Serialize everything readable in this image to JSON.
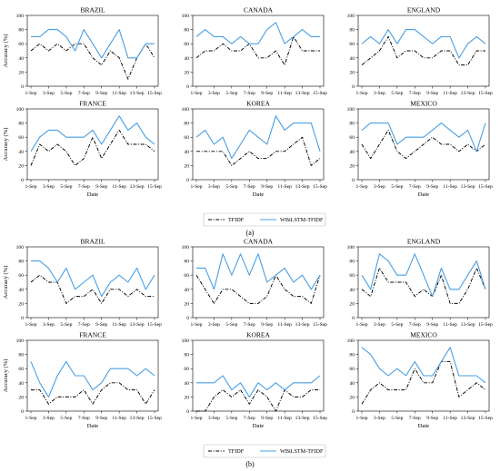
{
  "figure": {
    "ylabel": "Accuracy (%)",
    "xlabel": "Date",
    "panel_a_label": "(a)",
    "panel_b_label": "(b)",
    "legend_tfidf": "TFIDF",
    "legend_wbilstm": "WBiLSTM-TFIDF",
    "series_colors": {
      "TFIDF": "#000000",
      "WBiLSTM-TFIDF": "#4a9fe0"
    }
  },
  "chart_data": [
    {
      "type": "line",
      "panel": "a",
      "title": "BRAZIL",
      "x": [
        "1-Sep",
        "2-Sep",
        "3-Sep",
        "4-Sep",
        "5-Sep",
        "6-Sep",
        "7-Sep",
        "8-Sep",
        "9-Sep",
        "10-Sep",
        "11-Sep",
        "12-Sep",
        "13-Sep",
        "14-Sep",
        "15-Sep"
      ],
      "xticks": [
        "1-Sep",
        "3-Sep",
        "5-Sep",
        "7-Sep",
        "9-Sep",
        "11-Sep",
        "13-Sep",
        "15-Sep"
      ],
      "ylim": [
        0,
        100
      ],
      "yticks": [
        0,
        20,
        40,
        60,
        80,
        100
      ],
      "series": [
        {
          "name": "TFIDF",
          "values": [
            50,
            60,
            50,
            60,
            50,
            60,
            60,
            40,
            30,
            50,
            40,
            10,
            40,
            60,
            40
          ]
        },
        {
          "name": "WBiLSTM-TFIDF",
          "values": [
            70,
            70,
            80,
            80,
            70,
            50,
            80,
            60,
            40,
            60,
            80,
            40,
            40,
            60,
            60
          ]
        }
      ]
    },
    {
      "type": "line",
      "panel": "a",
      "title": "CANADA",
      "x": [
        "1-Sep",
        "2-Sep",
        "3-Sep",
        "4-Sep",
        "5-Sep",
        "6-Sep",
        "7-Sep",
        "8-Sep",
        "9-Sep",
        "10-Sep",
        "11-Sep",
        "12-Sep",
        "13-Sep",
        "14-Sep",
        "15-Sep"
      ],
      "xticks": [
        "1-Sep",
        "3-Sep",
        "5-Sep",
        "7-Sep",
        "9-Sep",
        "11-Sep",
        "13-Sep",
        "15-Sep"
      ],
      "ylim": [
        0,
        100
      ],
      "yticks": [
        0,
        20,
        40,
        60,
        80,
        100
      ],
      "series": [
        {
          "name": "TFIDF",
          "values": [
            40,
            50,
            50,
            60,
            50,
            50,
            60,
            40,
            40,
            50,
            30,
            70,
            50,
            50,
            50
          ]
        },
        {
          "name": "WBiLSTM-TFIDF",
          "values": [
            70,
            80,
            70,
            70,
            60,
            70,
            60,
            60,
            80,
            90,
            60,
            70,
            80,
            70,
            70
          ]
        }
      ]
    },
    {
      "type": "line",
      "panel": "a",
      "title": "ENGLAND",
      "x": [
        "1-Sep",
        "2-Sep",
        "3-Sep",
        "4-Sep",
        "5-Sep",
        "6-Sep",
        "7-Sep",
        "8-Sep",
        "9-Sep",
        "10-Sep",
        "11-Sep",
        "12-Sep",
        "13-Sep",
        "14-Sep",
        "15-Sep"
      ],
      "xticks": [
        "1-Sep",
        "3-Sep",
        "5-Sep",
        "7-Sep",
        "9-Sep",
        "11-Sep",
        "13-Sep",
        "15-Sep"
      ],
      "ylim": [
        0,
        100
      ],
      "yticks": [
        0,
        20,
        40,
        60,
        80,
        100
      ],
      "series": [
        {
          "name": "TFIDF",
          "values": [
            30,
            40,
            50,
            70,
            40,
            50,
            50,
            40,
            40,
            50,
            50,
            30,
            30,
            50,
            50
          ]
        },
        {
          "name": "WBiLSTM-TFIDF",
          "values": [
            60,
            70,
            60,
            80,
            60,
            80,
            80,
            70,
            60,
            70,
            70,
            40,
            60,
            70,
            60
          ]
        }
      ]
    },
    {
      "type": "line",
      "panel": "a",
      "title": "FRANCE",
      "x": [
        "1-Sep",
        "2-Sep",
        "3-Sep",
        "4-Sep",
        "5-Sep",
        "6-Sep",
        "7-Sep",
        "8-Sep",
        "9-Sep",
        "10-Sep",
        "11-Sep",
        "12-Sep",
        "13-Sep",
        "14-Sep",
        "15-Sep"
      ],
      "xticks": [
        "1-Sep",
        "3-Sep",
        "5-Sep",
        "7-Sep",
        "9-Sep",
        "11-Sep",
        "13-Sep",
        "15-Sep"
      ],
      "ylim": [
        0,
        100
      ],
      "yticks": [
        0,
        20,
        40,
        60,
        80,
        100
      ],
      "series": [
        {
          "name": "TFIDF",
          "values": [
            20,
            50,
            40,
            50,
            40,
            20,
            30,
            60,
            30,
            50,
            70,
            50,
            50,
            50,
            40
          ]
        },
        {
          "name": "WBiLSTM-TFIDF",
          "values": [
            40,
            60,
            70,
            70,
            60,
            60,
            60,
            70,
            50,
            70,
            90,
            70,
            80,
            60,
            50
          ]
        }
      ]
    },
    {
      "type": "line",
      "panel": "a",
      "title": "KOREA",
      "x": [
        "1-Sep",
        "2-Sep",
        "3-Sep",
        "4-Sep",
        "5-Sep",
        "6-Sep",
        "7-Sep",
        "8-Sep",
        "9-Sep",
        "10-Sep",
        "11-Sep",
        "12-Sep",
        "13-Sep",
        "14-Sep",
        "15-Sep"
      ],
      "xticks": [
        "1-Sep",
        "3-Sep",
        "5-Sep",
        "7-Sep",
        "9-Sep",
        "11-Sep",
        "13-Sep",
        "15-Sep"
      ],
      "ylim": [
        0,
        100
      ],
      "yticks": [
        0,
        20,
        40,
        60,
        80,
        100
      ],
      "series": [
        {
          "name": "TFIDF",
          "values": [
            40,
            40,
            40,
            40,
            20,
            30,
            40,
            30,
            30,
            40,
            40,
            50,
            60,
            20,
            30
          ]
        },
        {
          "name": "WBiLSTM-TFIDF",
          "values": [
            60,
            70,
            50,
            60,
            30,
            50,
            70,
            60,
            50,
            90,
            70,
            80,
            80,
            80,
            40
          ]
        }
      ]
    },
    {
      "type": "line",
      "panel": "a",
      "title": "MEXICO",
      "x": [
        "1-Sep",
        "2-Sep",
        "3-Sep",
        "4-Sep",
        "5-Sep",
        "6-Sep",
        "7-Sep",
        "8-Sep",
        "9-Sep",
        "10-Sep",
        "11-Sep",
        "12-Sep",
        "13-Sep",
        "14-Sep",
        "15-Sep"
      ],
      "xticks": [
        "1-Sep",
        "3-Sep",
        "5-Sep",
        "7-Sep",
        "9-Sep",
        "11-Sep",
        "13-Sep",
        "15-Sep"
      ],
      "ylim": [
        0,
        100
      ],
      "yticks": [
        0,
        20,
        40,
        60,
        80,
        100
      ],
      "series": [
        {
          "name": "TFIDF",
          "values": [
            50,
            30,
            50,
            70,
            40,
            30,
            40,
            50,
            60,
            50,
            50,
            40,
            50,
            40,
            50
          ]
        },
        {
          "name": "WBiLSTM-TFIDF",
          "values": [
            70,
            80,
            80,
            80,
            50,
            60,
            60,
            60,
            70,
            80,
            70,
            60,
            70,
            40,
            80
          ]
        }
      ]
    },
    {
      "type": "line",
      "panel": "b",
      "title": "BRAZIL",
      "x": [
        "1-Sep",
        "2-Sep",
        "3-Sep",
        "4-Sep",
        "5-Sep",
        "6-Sep",
        "7-Sep",
        "8-Sep",
        "9-Sep",
        "10-Sep",
        "11-Sep",
        "12-Sep",
        "13-Sep",
        "14-Sep",
        "15-Sep"
      ],
      "xticks": [
        "1-Sep",
        "3-Sep",
        "5-Sep",
        "7-Sep",
        "9-Sep",
        "11-Sep",
        "13-Sep",
        "15-Sep"
      ],
      "ylim": [
        0,
        100
      ],
      "yticks": [
        0,
        20,
        40,
        60,
        80,
        100
      ],
      "series": [
        {
          "name": "TFIDF",
          "values": [
            50,
            60,
            50,
            50,
            20,
            30,
            30,
            40,
            20,
            40,
            40,
            30,
            40,
            30,
            30
          ]
        },
        {
          "name": "WBiLSTM-TFIDF",
          "values": [
            80,
            80,
            70,
            50,
            70,
            40,
            50,
            60,
            30,
            50,
            60,
            50,
            70,
            40,
            60
          ]
        }
      ]
    },
    {
      "type": "line",
      "panel": "b",
      "title": "CANADA",
      "x": [
        "1-Sep",
        "2-Sep",
        "3-Sep",
        "4-Sep",
        "5-Sep",
        "6-Sep",
        "7-Sep",
        "8-Sep",
        "9-Sep",
        "10-Sep",
        "11-Sep",
        "12-Sep",
        "13-Sep",
        "14-Sep",
        "15-Sep"
      ],
      "xticks": [
        "1-Sep",
        "3-Sep",
        "5-Sep",
        "7-Sep",
        "9-Sep",
        "11-Sep",
        "13-Sep",
        "15-Sep"
      ],
      "ylim": [
        0,
        100
      ],
      "yticks": [
        0,
        20,
        40,
        60,
        80,
        100
      ],
      "series": [
        {
          "name": "TFIDF",
          "values": [
            60,
            40,
            20,
            40,
            40,
            30,
            20,
            20,
            30,
            60,
            40,
            30,
            30,
            20,
            60
          ]
        },
        {
          "name": "WBiLSTM-TFIDF",
          "values": [
            70,
            70,
            40,
            90,
            60,
            90,
            60,
            90,
            50,
            60,
            70,
            50,
            60,
            40,
            60
          ]
        }
      ]
    },
    {
      "type": "line",
      "panel": "b",
      "title": "ENGLAND",
      "x": [
        "1-Sep",
        "2-Sep",
        "3-Sep",
        "4-Sep",
        "5-Sep",
        "6-Sep",
        "7-Sep",
        "8-Sep",
        "9-Sep",
        "10-Sep",
        "11-Sep",
        "12-Sep",
        "13-Sep",
        "14-Sep",
        "15-Sep"
      ],
      "xticks": [
        "1-Sep",
        "3-Sep",
        "5-Sep",
        "7-Sep",
        "9-Sep",
        "11-Sep",
        "13-Sep",
        "15-Sep"
      ],
      "ylim": [
        0,
        100
      ],
      "yticks": [
        0,
        20,
        40,
        60,
        80,
        100
      ],
      "series": [
        {
          "name": "TFIDF",
          "values": [
            40,
            30,
            70,
            50,
            50,
            50,
            30,
            40,
            30,
            60,
            20,
            20,
            40,
            70,
            40
          ]
        },
        {
          "name": "WBiLSTM-TFIDF",
          "values": [
            60,
            40,
            90,
            80,
            60,
            60,
            90,
            60,
            30,
            70,
            40,
            40,
            60,
            80,
            40
          ]
        }
      ]
    },
    {
      "type": "line",
      "panel": "b",
      "title": "FRANCE",
      "x": [
        "1-Sep",
        "2-Sep",
        "3-Sep",
        "4-Sep",
        "5-Sep",
        "6-Sep",
        "7-Sep",
        "8-Sep",
        "9-Sep",
        "10-Sep",
        "11-Sep",
        "12-Sep",
        "13-Sep",
        "14-Sep",
        "15-Sep"
      ],
      "xticks": [
        "1-Sep",
        "3-Sep",
        "5-Sep",
        "7-Sep",
        "9-Sep",
        "11-Sep",
        "13-Sep",
        "15-Sep"
      ],
      "ylim": [
        0,
        100
      ],
      "yticks": [
        0,
        20,
        40,
        60,
        80,
        100
      ],
      "series": [
        {
          "name": "TFIDF",
          "values": [
            30,
            30,
            10,
            20,
            20,
            20,
            30,
            10,
            30,
            40,
            40,
            30,
            30,
            10,
            30
          ]
        },
        {
          "name": "WBiLSTM-TFIDF",
          "values": [
            70,
            40,
            20,
            50,
            70,
            50,
            50,
            30,
            40,
            60,
            60,
            60,
            50,
            60,
            50
          ]
        }
      ]
    },
    {
      "type": "line",
      "panel": "b",
      "title": "KOREA",
      "x": [
        "1-Sep",
        "2-Sep",
        "3-Sep",
        "4-Sep",
        "5-Sep",
        "6-Sep",
        "7-Sep",
        "8-Sep",
        "9-Sep",
        "10-Sep",
        "11-Sep",
        "12-Sep",
        "13-Sep",
        "14-Sep",
        "15-Sep"
      ],
      "xticks": [
        "1-Sep",
        "3-Sep",
        "5-Sep",
        "7-Sep",
        "9-Sep",
        "11-Sep",
        "13-Sep",
        "15-Sep"
      ],
      "ylim": [
        0,
        100
      ],
      "yticks": [
        0,
        20,
        40,
        60,
        80,
        100
      ],
      "series": [
        {
          "name": "TFIDF",
          "values": [
            0,
            0,
            20,
            30,
            20,
            30,
            10,
            30,
            20,
            0,
            30,
            20,
            20,
            30,
            30
          ]
        },
        {
          "name": "WBiLSTM-TFIDF",
          "values": [
            40,
            40,
            40,
            50,
            30,
            40,
            20,
            40,
            30,
            40,
            30,
            40,
            40,
            40,
            50
          ]
        }
      ]
    },
    {
      "type": "line",
      "panel": "b",
      "title": "MEXICO",
      "x": [
        "1-Sep",
        "2-Sep",
        "3-Sep",
        "4-Sep",
        "5-Sep",
        "6-Sep",
        "7-Sep",
        "8-Sep",
        "9-Sep",
        "10-Sep",
        "11-Sep",
        "12-Sep",
        "13-Sep",
        "14-Sep",
        "15-Sep"
      ],
      "xticks": [
        "1-Sep",
        "3-Sep",
        "5-Sep",
        "7-Sep",
        "9-Sep",
        "11-Sep",
        "13-Sep",
        "15-Sep"
      ],
      "ylim": [
        0,
        100
      ],
      "yticks": [
        0,
        20,
        40,
        60,
        80,
        100
      ],
      "series": [
        {
          "name": "TFIDF",
          "values": [
            10,
            30,
            40,
            30,
            30,
            30,
            60,
            40,
            40,
            70,
            70,
            20,
            30,
            40,
            30
          ]
        },
        {
          "name": "WBiLSTM-TFIDF",
          "values": [
            90,
            80,
            60,
            50,
            60,
            50,
            70,
            50,
            50,
            70,
            90,
            50,
            50,
            50,
            40
          ]
        }
      ]
    }
  ]
}
